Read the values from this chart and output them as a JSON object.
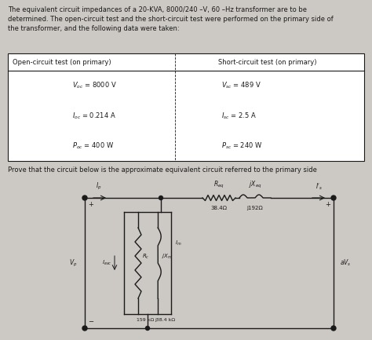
{
  "bg_color": "#ccc8c4",
  "title_text": "The equivalent circuit impedances of a 20-KVA, 8000/240 –V, 60 –Hz transformer are to be\ndetermined. The open-circuit test and the short-circuit test were performed on the primary side of\nthe transformer, and the following data were taken:",
  "col1_header": "Open-circuit test (on primary)",
  "col2_header": "Short-circuit test (on primary)",
  "row1_left": "V",
  "row1_left_sub": "oc",
  "row1_left_val": " = 8000 V",
  "row1_right": "V",
  "row1_right_sub": "sc",
  "row1_right_val": " = 489 V",
  "row2_left": "I",
  "row2_left_sub": "oc",
  "row2_left_val": " = 0.214 A",
  "row2_right": "I",
  "row2_right_sub": "sc",
  "row2_right_val": " = 2.5 A",
  "row3_left": "P",
  "row3_left_sub": "oc",
  "row3_left_val": " = 400 W",
  "row3_right": "P",
  "row3_right_sub": "sc",
  "row3_right_val": " = 240 W",
  "prove_text": "Prove that the circuit below is the approximate equivalent circuit referred to the primary side",
  "Req_val": "38.4Ω",
  "jXeq_val": "j192Ω",
  "Rc_val": "159 kΩ",
  "jXm_val": "j38.4 kΩ",
  "line_color": "#1a1a1a",
  "text_color": "#1a1a1a",
  "table_bg": "#e8e4e0",
  "title_fontsize": 6.0,
  "table_fontsize": 6.0,
  "circuit_fontsize": 5.0
}
